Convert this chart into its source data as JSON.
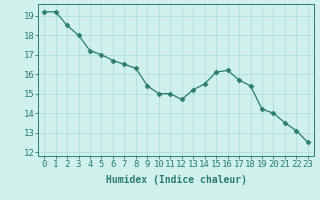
{
  "x": [
    0,
    1,
    2,
    3,
    4,
    5,
    6,
    7,
    8,
    9,
    10,
    11,
    12,
    13,
    14,
    15,
    16,
    17,
    18,
    19,
    20,
    21,
    22,
    23
  ],
  "y": [
    19.2,
    19.2,
    18.5,
    18.0,
    17.2,
    17.0,
    16.7,
    16.5,
    16.3,
    15.4,
    15.0,
    15.0,
    14.7,
    15.2,
    15.5,
    16.1,
    16.2,
    15.7,
    15.4,
    14.2,
    14.0,
    13.5,
    13.1,
    12.5
  ],
  "line_color": "#2a7d6b",
  "marker": "D",
  "marker_size": 2.5,
  "bg_color": "#cff0eb",
  "grid_color": "#b0ddd8",
  "xlabel": "Humidex (Indice chaleur)",
  "ylabel": "",
  "xlim": [
    -0.5,
    23.5
  ],
  "ylim": [
    11.8,
    19.6
  ],
  "yticks": [
    12,
    13,
    14,
    15,
    16,
    17,
    18,
    19
  ],
  "xticks": [
    0,
    1,
    2,
    3,
    4,
    5,
    6,
    7,
    8,
    9,
    10,
    11,
    12,
    13,
    14,
    15,
    16,
    17,
    18,
    19,
    20,
    21,
    22,
    23
  ],
  "tick_color": "#2a7d6b",
  "label_color": "#2a7d6b",
  "spine_color": "#2a7d6b",
  "xlabel_fontsize": 7,
  "tick_fontsize": 6.5
}
